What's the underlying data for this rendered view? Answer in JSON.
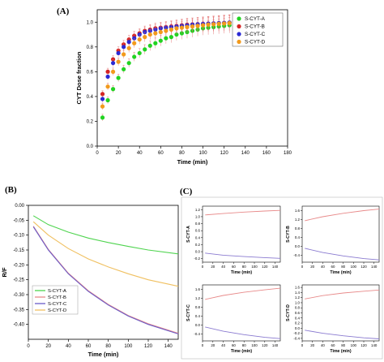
{
  "chart_data": [
    {
      "panel": "(A)",
      "type": "scatter",
      "xlabel": "Time (min)",
      "ylabel": "CYT Dose fraction",
      "xlim": [
        0,
        180
      ],
      "ylim": [
        0,
        1.1
      ],
      "xticks": [
        0,
        20,
        40,
        60,
        80,
        100,
        120,
        140,
        160,
        180
      ],
      "yticks": [
        0.0,
        0.2,
        0.4,
        0.6,
        0.8,
        1.0
      ],
      "error_bars": true,
      "legend": "top-right",
      "x": [
        5,
        10,
        15,
        20,
        25,
        30,
        35,
        40,
        45,
        50,
        55,
        60,
        65,
        70,
        75,
        80,
        85,
        90,
        95,
        100,
        105,
        110,
        115,
        120,
        125,
        130,
        135,
        140,
        145,
        150
      ],
      "series": [
        {
          "name": "S-CYT-A",
          "color": "#22d322",
          "values": [
            0.23,
            0.37,
            0.46,
            0.55,
            0.62,
            0.67,
            0.72,
            0.75,
            0.78,
            0.81,
            0.83,
            0.85,
            0.87,
            0.88,
            0.9,
            0.91,
            0.92,
            0.93,
            0.94,
            0.95,
            0.955,
            0.96,
            0.965,
            0.97,
            0.975,
            0.98,
            0.985,
            0.99,
            0.995,
            1.0
          ]
        },
        {
          "name": "S-CYT-B",
          "color": "#d42424",
          "values": [
            0.42,
            0.6,
            0.7,
            0.77,
            0.82,
            0.86,
            0.89,
            0.91,
            0.93,
            0.94,
            0.95,
            0.955,
            0.96,
            0.965,
            0.97,
            0.975,
            0.98,
            0.982,
            0.984,
            0.986,
            0.988,
            0.99,
            0.992,
            0.994,
            0.996,
            0.997,
            0.998,
            0.999,
            1.0,
            1.0
          ]
        },
        {
          "name": "S-CYT-C",
          "color": "#2a2ad4",
          "values": [
            0.38,
            0.56,
            0.67,
            0.75,
            0.8,
            0.84,
            0.87,
            0.9,
            0.92,
            0.93,
            0.94,
            0.95,
            0.955,
            0.96,
            0.965,
            0.97,
            0.975,
            0.98,
            0.983,
            0.986,
            0.988,
            0.99,
            0.992,
            0.994,
            0.996,
            0.997,
            0.998,
            0.999,
            1.0,
            1.0
          ]
        },
        {
          "name": "S-CYT-D",
          "color": "#f29a1c",
          "values": [
            0.32,
            0.48,
            0.6,
            0.68,
            0.74,
            0.79,
            0.83,
            0.86,
            0.88,
            0.9,
            0.91,
            0.92,
            0.93,
            0.94,
            0.95,
            0.955,
            0.96,
            0.965,
            0.97,
            0.975,
            0.98,
            0.983,
            0.986,
            0.989,
            0.992,
            0.994,
            0.996,
            0.998,
            1.0,
            1.0
          ]
        }
      ]
    },
    {
      "panel": "(B)",
      "type": "line",
      "xlabel": "Time (min)",
      "ylabel": "R/F",
      "xlim": [
        0,
        150
      ],
      "ylim": [
        -0.45,
        0
      ],
      "xticks": [
        0,
        20,
        40,
        60,
        80,
        100,
        120,
        140
      ],
      "yticks": [
        0.0,
        -0.05,
        -0.1,
        -0.15,
        -0.2,
        -0.25,
        -0.3,
        -0.35,
        -0.4
      ],
      "ytick_labels": [
        "0.00",
        "-0.05",
        "-0.10",
        "-0.15",
        "-0.20",
        "-0.25",
        "-0.30",
        "-0.35",
        "-0.40"
      ],
      "legend": "bottom-left",
      "x": [
        5,
        20,
        40,
        60,
        80,
        100,
        120,
        150
      ],
      "series": [
        {
          "name": "S-CYT-A",
          "color": "#4fd44f",
          "values": [
            -0.035,
            -0.065,
            -0.09,
            -0.11,
            -0.125,
            -0.138,
            -0.15,
            -0.163
          ]
        },
        {
          "name": "S-CYT-B",
          "color": "#e88a8a",
          "values": [
            -0.07,
            -0.148,
            -0.228,
            -0.287,
            -0.333,
            -0.37,
            -0.398,
            -0.43
          ]
        },
        {
          "name": "S-CYT-C",
          "color": "#6a5cc8",
          "values": [
            -0.072,
            -0.15,
            -0.23,
            -0.289,
            -0.335,
            -0.372,
            -0.4,
            -0.432
          ]
        },
        {
          "name": "S-CYT-D",
          "color": "#f0c060",
          "values": [
            -0.055,
            -0.1,
            -0.145,
            -0.18,
            -0.207,
            -0.23,
            -0.25,
            -0.272
          ]
        }
      ]
    },
    {
      "panel": "(C)",
      "type": "line",
      "subplots": [
        {
          "ylabel": "S-CYT-A",
          "xlabel": "Time (min)",
          "xlim": [
            0,
            150
          ],
          "ylim": [
            -0.3,
            1.3
          ],
          "xticks": [
            0,
            20,
            40,
            60,
            80,
            100,
            120,
            140
          ],
          "yticks": [
            1.2,
            1.0,
            0.8,
            0.6,
            0.4,
            0.2,
            0.0,
            -0.2
          ],
          "ytick_labels": [
            "1.2",
            "1.0",
            "0.8",
            "0.6",
            "0.4",
            "0.2",
            "0.0",
            "-0.2"
          ],
          "x": [
            5,
            40,
            80,
            120,
            150
          ],
          "series": [
            {
              "color": "#e88a8a",
              "values": [
                1.05,
                1.09,
                1.13,
                1.16,
                1.18
              ]
            },
            {
              "color": "#8a7ad0",
              "values": [
                -0.04,
                -0.1,
                -0.14,
                -0.17,
                -0.19
              ]
            }
          ]
        },
        {
          "ylabel": "S-CYT-B",
          "xlabel": "Time (min)",
          "xlim": [
            0,
            150
          ],
          "ylim": [
            -0.7,
            1.8
          ],
          "xticks": [
            0,
            20,
            40,
            60,
            80,
            100,
            120,
            140
          ],
          "yticks": [
            1.6,
            1.2,
            0.8,
            0.4,
            0.0,
            -0.4
          ],
          "ytick_labels": [
            "1.6",
            "1.2",
            "0.8",
            "0.4",
            "0.0",
            "-0.4"
          ],
          "x": [
            5,
            40,
            80,
            120,
            150
          ],
          "series": [
            {
              "color": "#e88a8a",
              "values": [
                1.15,
                1.33,
                1.48,
                1.6,
                1.67
              ]
            },
            {
              "color": "#8a7ad0",
              "values": [
                -0.08,
                -0.27,
                -0.42,
                -0.54,
                -0.6
              ]
            }
          ]
        },
        {
          "ylabel": "S-CYT-C",
          "xlabel": "Time (min)",
          "xlim": [
            0,
            150
          ],
          "ylim": [
            -0.7,
            1.8
          ],
          "xticks": [
            0,
            20,
            40,
            60,
            80,
            100,
            120,
            140
          ],
          "yticks": [
            1.6,
            1.2,
            0.8,
            0.4,
            0.0,
            -0.4
          ],
          "ytick_labels": [
            "1.6",
            "1.2",
            "0.8",
            "0.4",
            "0.0",
            "-0.4"
          ],
          "x": [
            5,
            40,
            80,
            120,
            150
          ],
          "series": [
            {
              "color": "#e88a8a",
              "values": [
                1.15,
                1.33,
                1.47,
                1.58,
                1.65
              ]
            },
            {
              "color": "#8a7ad0",
              "values": [
                -0.08,
                -0.27,
                -0.42,
                -0.54,
                -0.6
              ]
            }
          ]
        },
        {
          "ylabel": "S-CYT-D",
          "xlabel": "Time (min)",
          "xlim": [
            0,
            150
          ],
          "ylim": [
            -0.5,
            1.7
          ],
          "xticks": [
            0,
            20,
            40,
            60,
            80,
            100,
            120,
            140
          ],
          "yticks": [
            1.6,
            1.4,
            1.2,
            1.0,
            0.8,
            0.6,
            0.4,
            0.2,
            0.0,
            -0.2,
            -0.4
          ],
          "ytick_labels": [
            "1.6",
            "1.4",
            "1.2",
            "1.0",
            "0.8",
            "0.6",
            "0.4",
            "0.2",
            "0.0",
            "-0.2",
            "-0.4"
          ],
          "x": [
            5,
            40,
            80,
            120,
            150
          ],
          "series": [
            {
              "color": "#e88a8a",
              "values": [
                1.15,
                1.28,
                1.38,
                1.45,
                1.5
              ]
            },
            {
              "color": "#8a7ad0",
              "values": [
                -0.08,
                -0.2,
                -0.3,
                -0.38,
                -0.42
              ]
            }
          ]
        }
      ]
    }
  ]
}
